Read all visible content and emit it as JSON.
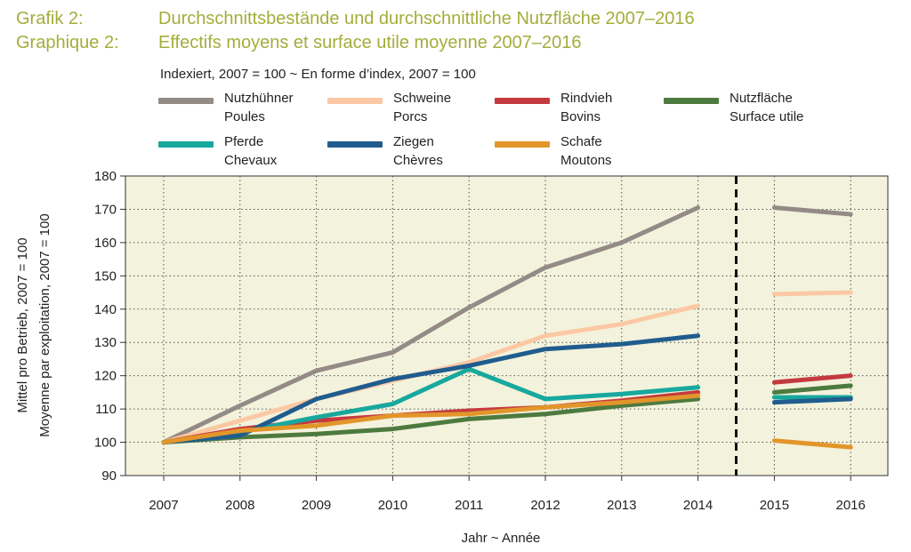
{
  "header": {
    "de_label": "Grafik 2:",
    "de_title": "Durchschnittsbestände und durchschnittliche Nutzfläche 2007–2016",
    "fr_label": "Graphique 2:",
    "fr_title": "Effectifs moyens et surface utile moyenne 2007–2016",
    "subtitle": "Indexiert, 2007 = 100   ~   En forme d’index, 2007 = 100"
  },
  "chart_data": {
    "type": "line",
    "title": "Durchschnittsbestände und durchschnittliche Nutzfläche 2007–2016",
    "x": [
      "2007",
      "2008",
      "2009",
      "2010",
      "2011",
      "2012",
      "2013",
      "2014",
      "2015",
      "2016"
    ],
    "xlabel": "Jahr  ~  Année",
    "ylabel_1": "Mittel pro Betrieb, 2007 = 100",
    "ylabel_2": "Moyenne par exploitation, 2007 = 100",
    "ylim": [
      90,
      180
    ],
    "yticks": [
      90,
      100,
      110,
      120,
      130,
      140,
      150,
      160,
      170,
      180
    ],
    "grid": true,
    "legend": "top",
    "series": [
      {
        "name_de": "Nutzhühner",
        "name_fr": "Poules",
        "color": "#948a86",
        "values": [
          100,
          111,
          121.5,
          127,
          140.5,
          152.5,
          160,
          170.5,
          170.5,
          168.5
        ]
      },
      {
        "name_de": "Schweine",
        "name_fr": "Porcs",
        "color": "#fcc8a4",
        "values": [
          100,
          106.5,
          113,
          118.5,
          124,
          132,
          135.5,
          141,
          144.5,
          145
        ]
      },
      {
        "name_de": "Rindvieh",
        "name_fr": "Bovins",
        "color": "#c43a3f",
        "values": [
          100,
          104,
          106.5,
          108,
          109.5,
          110.5,
          112.5,
          115,
          118,
          120
        ]
      },
      {
        "name_de": "Nutzfläche",
        "name_fr": "Surface utile",
        "color": "#4d7a3f",
        "values": [
          100,
          101.5,
          102.5,
          104,
          107,
          108.5,
          111,
          113,
          115,
          117
        ]
      },
      {
        "name_de": "Pferde",
        "name_fr": "Chevaux",
        "color": "#17a89e",
        "values": [
          100,
          103,
          107.5,
          111.5,
          122,
          113,
          114.5,
          116.5,
          113.5,
          113.5
        ]
      },
      {
        "name_de": "Ziegen",
        "name_fr": "Chèvres",
        "color": "#205c8e",
        "values": [
          100,
          102,
          113,
          119,
          123,
          128,
          129.5,
          132,
          112,
          113
        ]
      },
      {
        "name_de": "Schafe",
        "name_fr": "Moutons",
        "color": "#e2962a",
        "values": [
          100,
          103.5,
          105,
          108,
          108.5,
          110.5,
          112,
          114,
          100.5,
          98.5
        ]
      }
    ]
  }
}
